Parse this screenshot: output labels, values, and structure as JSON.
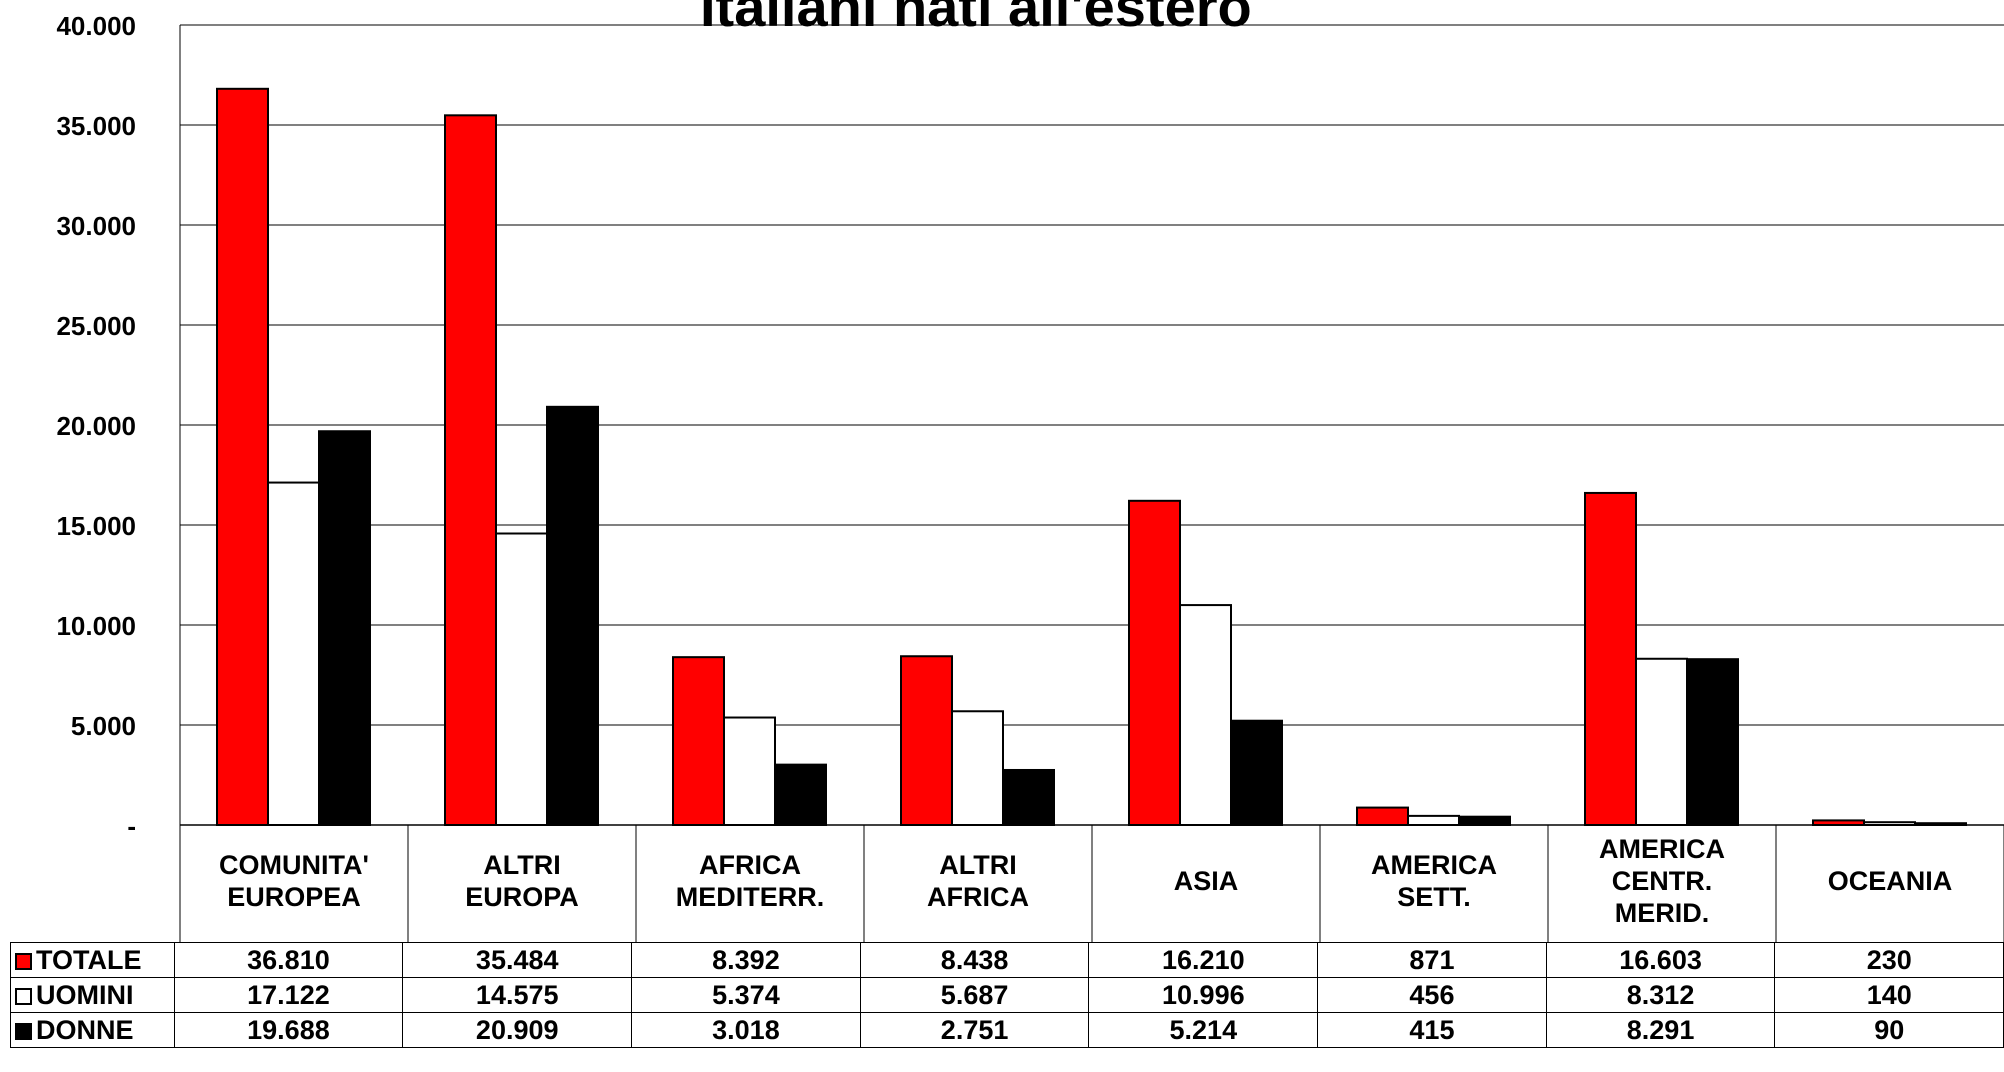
{
  "chart_data": {
    "type": "bar",
    "title": "Italiani nati all'estero",
    "categories": [
      [
        "COMUNITA'",
        "EUROPEA"
      ],
      [
        "ALTRI",
        "EUROPA"
      ],
      [
        "AFRICA",
        "MEDITERR."
      ],
      [
        "ALTRI",
        "AFRICA"
      ],
      [
        "ASIA"
      ],
      [
        "AMERICA",
        "SETT."
      ],
      [
        "AMERICA",
        "CENTR.",
        "MERID."
      ],
      [
        "OCEANIA"
      ]
    ],
    "series": [
      {
        "name": "TOTALE",
        "color": "#ff0000",
        "values": [
          36810,
          35484,
          8392,
          8438,
          16210,
          871,
          16603,
          230
        ]
      },
      {
        "name": "UOMINI",
        "color": "#ffffff",
        "values": [
          17122,
          14575,
          5374,
          5687,
          10996,
          456,
          8312,
          140
        ]
      },
      {
        "name": "DONNE",
        "color": "#000000",
        "values": [
          19688,
          20909,
          3018,
          2751,
          5214,
          415,
          8291,
          90
        ]
      }
    ],
    "ylim": [
      0,
      40000
    ],
    "yticks": [
      {
        "value": 0,
        "label": "-"
      },
      {
        "value": 5000,
        "label": "5.000"
      },
      {
        "value": 10000,
        "label": "10.000"
      },
      {
        "value": 15000,
        "label": "15.000"
      },
      {
        "value": 20000,
        "label": "20.000"
      },
      {
        "value": 25000,
        "label": "25.000"
      },
      {
        "value": 30000,
        "label": "30.000"
      },
      {
        "value": 35000,
        "label": "35.000"
      },
      {
        "value": 40000,
        "label": "40.000"
      }
    ],
    "grid": true,
    "legend": "data-table-left",
    "table": {
      "rows": [
        {
          "name": "TOTALE",
          "cells": [
            "36.810",
            "35.484",
            "8.392",
            "8.438",
            "16.210",
            "871",
            "16.603",
            "230"
          ]
        },
        {
          "name": "UOMINI",
          "cells": [
            "17.122",
            "14.575",
            "5.374",
            "5.687",
            "10.996",
            "456",
            "8.312",
            "140"
          ]
        },
        {
          "name": "DONNE",
          "cells": [
            "19.688",
            "20.909",
            "3.018",
            "2.751",
            "5.214",
            "415",
            "8.291",
            "90"
          ]
        }
      ]
    }
  }
}
